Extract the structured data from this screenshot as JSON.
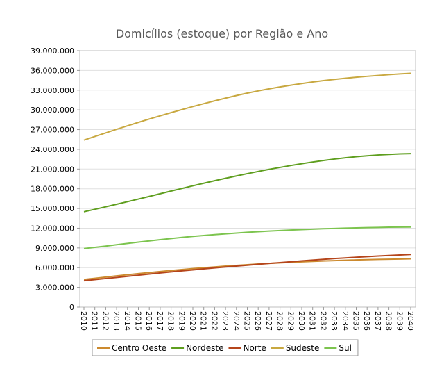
{
  "chart_data": {
    "type": "line",
    "title": "Domicílios (estoque) por Região e Ano",
    "xlabel": "",
    "ylabel": "",
    "ylim": [
      0,
      39000000
    ],
    "yticks": [
      0,
      3000000,
      6000000,
      9000000,
      12000000,
      15000000,
      18000000,
      21000000,
      24000000,
      27000000,
      30000000,
      33000000,
      36000000,
      39000000
    ],
    "ytick_labels": [
      "0",
      "3.000.000",
      "6.000.000",
      "9.000.000",
      "12.000.000",
      "15.000.000",
      "18.000.000",
      "21.000.000",
      "24.000.000",
      "27.000.000",
      "30.000.000",
      "33.000.000",
      "36.000.000",
      "39.000.000"
    ],
    "x": [
      "2010",
      "2011",
      "2012",
      "2013",
      "2014",
      "2015",
      "2016",
      "2017",
      "2018",
      "2019",
      "2020",
      "2021",
      "2022",
      "2023",
      "2024",
      "2025",
      "2026",
      "2027",
      "2028",
      "2029",
      "2030",
      "2031",
      "2032",
      "2033",
      "2034",
      "2035",
      "2036",
      "2037",
      "2038",
      "2039",
      "2040"
    ],
    "grid": "horizontal",
    "legend_position": "bottom",
    "series": [
      {
        "name": "Centro Oeste",
        "color": "#cc8a2e",
        "values": [
          4200000,
          4380000,
          4560000,
          4740000,
          4920000,
          5090000,
          5250000,
          5410000,
          5560000,
          5710000,
          5850000,
          5980000,
          6110000,
          6230000,
          6340000,
          6450000,
          6550000,
          6640000,
          6730000,
          6810000,
          6880000,
          6950000,
          7010000,
          7070000,
          7120000,
          7170000,
          7210000,
          7250000,
          7280000,
          7310000,
          7340000
        ]
      },
      {
        "name": "Nordeste",
        "color": "#5e9e1e",
        "values": [
          14500000,
          14870000,
          15250000,
          15640000,
          16030000,
          16430000,
          16830000,
          17240000,
          17650000,
          18050000,
          18450000,
          18840000,
          19220000,
          19590000,
          19950000,
          20300000,
          20630000,
          20950000,
          21250000,
          21540000,
          21810000,
          22070000,
          22300000,
          22520000,
          22710000,
          22880000,
          23020000,
          23140000,
          23230000,
          23300000,
          23350000
        ]
      },
      {
        "name": "Norte",
        "color": "#b5451b",
        "values": [
          4000000,
          4170000,
          4340000,
          4510000,
          4680000,
          4850000,
          5020000,
          5190000,
          5350000,
          5510000,
          5660000,
          5810000,
          5960000,
          6100000,
          6240000,
          6370000,
          6510000,
          6640000,
          6770000,
          6900000,
          7030000,
          7150000,
          7270000,
          7380000,
          7480000,
          7580000,
          7680000,
          7770000,
          7850000,
          7930000,
          8000000
        ]
      },
      {
        "name": "Sudeste",
        "color": "#c8a840",
        "values": [
          25400000,
          25950000,
          26500000,
          27050000,
          27580000,
          28100000,
          28610000,
          29100000,
          29580000,
          30050000,
          30510000,
          30950000,
          31380000,
          31790000,
          32180000,
          32550000,
          32890000,
          33200000,
          33490000,
          33760000,
          34010000,
          34240000,
          34450000,
          34640000,
          34810000,
          34970000,
          35110000,
          35240000,
          35360000,
          35470000,
          35570000
        ]
      },
      {
        "name": "Sul",
        "color": "#7cc44e",
        "values": [
          8900000,
          9090000,
          9280000,
          9480000,
          9680000,
          9880000,
          10070000,
          10250000,
          10420000,
          10590000,
          10750000,
          10890000,
          11020000,
          11140000,
          11260000,
          11370000,
          11470000,
          11560000,
          11640000,
          11720000,
          11790000,
          11850000,
          11910000,
          11960000,
          12010000,
          12050000,
          12090000,
          12120000,
          12150000,
          12170000,
          12180000
        ]
      }
    ]
  }
}
